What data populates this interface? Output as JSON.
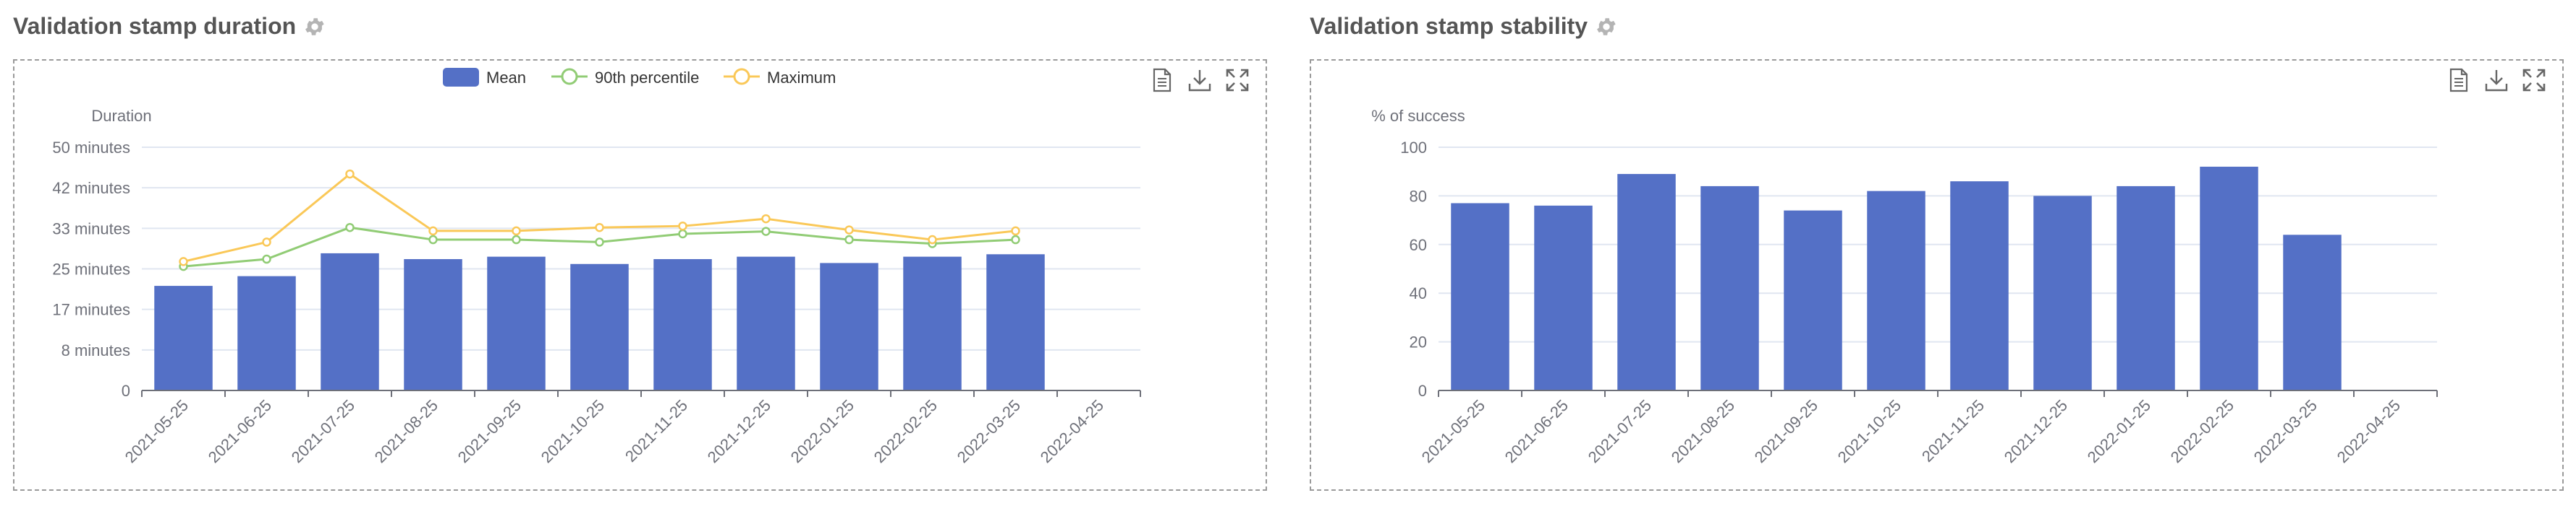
{
  "panels": [
    {
      "title": "Validation stamp duration",
      "settings_icon": "gear-icon",
      "toolbar": [
        "data-view-icon",
        "download-icon",
        "fullscreen-icon"
      ]
    },
    {
      "title": "Validation stamp stability",
      "settings_icon": "gear-icon",
      "toolbar": [
        "data-view-icon",
        "download-icon",
        "fullscreen-icon"
      ]
    }
  ],
  "colors": {
    "bar": "#5470c6",
    "p90": "#91cc75",
    "max": "#fac858",
    "axis": "#6e7079",
    "grid": "#e0e6f1",
    "title": "#555555",
    "icon": "#666666",
    "gear": "#b4b4b4"
  },
  "chart_data": [
    {
      "type": "bar",
      "title": "",
      "ylabel": "Duration",
      "xlabel": "",
      "legend_position": "top-center",
      "grid": true,
      "categories": [
        "2021-05-25",
        "2021-06-25",
        "2021-07-25",
        "2021-08-25",
        "2021-09-25",
        "2021-10-25",
        "2021-11-25",
        "2021-12-25",
        "2022-01-25",
        "2022-02-25",
        "2022-03-25",
        "2022-04-25"
      ],
      "ylim": [
        0,
        50
      ],
      "yticks": [
        0,
        8.33,
        16.67,
        25,
        33.33,
        41.67,
        50
      ],
      "ytick_labels": [
        "0",
        "8 minutes",
        "17 minutes",
        "25 minutes",
        "33 minutes",
        "42 minutes",
        "50 minutes"
      ],
      "series": [
        {
          "name": "Mean",
          "type": "bar",
          "values": [
            21.5,
            23.5,
            28.2,
            27.0,
            27.5,
            26.0,
            27.0,
            27.5,
            26.2,
            27.5,
            28.0,
            null
          ]
        },
        {
          "name": "90th percentile",
          "type": "line",
          "values": [
            25.5,
            27.0,
            33.5,
            31.0,
            31.0,
            30.5,
            32.2,
            32.7,
            31.0,
            30.2,
            31.0,
            null
          ]
        },
        {
          "name": "Maximum",
          "type": "line",
          "values": [
            26.5,
            30.5,
            44.5,
            32.8,
            32.8,
            33.5,
            33.8,
            35.3,
            33.0,
            31.0,
            32.8,
            null
          ]
        }
      ]
    },
    {
      "type": "bar",
      "title": "",
      "ylabel": "% of success",
      "xlabel": "",
      "grid": true,
      "categories": [
        "2021-05-25",
        "2021-06-25",
        "2021-07-25",
        "2021-08-25",
        "2021-09-25",
        "2021-10-25",
        "2021-11-25",
        "2021-12-25",
        "2022-01-25",
        "2022-02-25",
        "2022-03-25",
        "2022-04-25"
      ],
      "ylim": [
        0,
        100
      ],
      "yticks": [
        0,
        20,
        40,
        60,
        80,
        100
      ],
      "ytick_labels": [
        "0",
        "20",
        "40",
        "60",
        "80",
        "100"
      ],
      "series": [
        {
          "values": [
            77,
            76,
            89,
            84,
            74,
            82,
            86,
            80,
            84,
            92,
            64,
            null
          ]
        }
      ]
    }
  ]
}
